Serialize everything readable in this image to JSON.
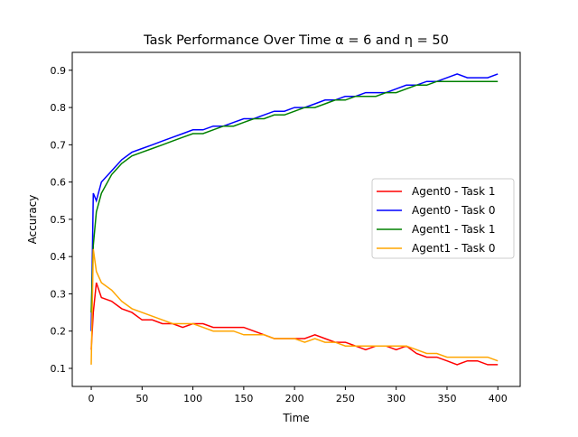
{
  "chart_data": {
    "type": "line",
    "title": "Task Performance Over Time α = 6 and η = 50",
    "xlabel": "Time",
    "ylabel": "Accuracy",
    "xlim": [
      -18.7,
      422
    ],
    "ylim": [
      0.0515,
      0.948
    ],
    "xticks": [
      0,
      50,
      100,
      150,
      200,
      250,
      300,
      350,
      400
    ],
    "yticks": [
      0.1,
      0.2,
      0.3,
      0.4,
      0.5,
      0.6,
      0.7,
      0.8,
      0.9
    ],
    "grid": false,
    "legend_position": "center-right",
    "x": [
      0,
      2,
      5,
      10,
      20,
      30,
      40,
      50,
      60,
      70,
      80,
      90,
      100,
      110,
      120,
      130,
      140,
      150,
      160,
      170,
      180,
      190,
      200,
      210,
      220,
      230,
      240,
      250,
      260,
      270,
      280,
      290,
      300,
      310,
      320,
      330,
      340,
      350,
      360,
      370,
      380,
      390,
      400
    ],
    "series": [
      {
        "name": "Agent0 - Task 1",
        "color": "#ff0000",
        "values": [
          0.15,
          0.25,
          0.33,
          0.29,
          0.28,
          0.26,
          0.25,
          0.23,
          0.23,
          0.22,
          0.22,
          0.21,
          0.22,
          0.22,
          0.21,
          0.21,
          0.21,
          0.21,
          0.2,
          0.19,
          0.18,
          0.18,
          0.18,
          0.18,
          0.19,
          0.18,
          0.17,
          0.17,
          0.16,
          0.15,
          0.16,
          0.16,
          0.15,
          0.16,
          0.14,
          0.13,
          0.13,
          0.12,
          0.11,
          0.12,
          0.12,
          0.11,
          0.11
        ]
      },
      {
        "name": "Agent0 - Task 0",
        "color": "#0000ff",
        "values": [
          0.2,
          0.57,
          0.55,
          0.6,
          0.63,
          0.66,
          0.68,
          0.69,
          0.7,
          0.71,
          0.72,
          0.73,
          0.74,
          0.74,
          0.75,
          0.75,
          0.76,
          0.77,
          0.77,
          0.78,
          0.79,
          0.79,
          0.8,
          0.8,
          0.81,
          0.82,
          0.82,
          0.83,
          0.83,
          0.84,
          0.84,
          0.84,
          0.85,
          0.86,
          0.86,
          0.87,
          0.87,
          0.88,
          0.89,
          0.88,
          0.88,
          0.88,
          0.89
        ]
      },
      {
        "name": "Agent1 - Task 1",
        "color": "#008000",
        "values": [
          0.25,
          0.43,
          0.52,
          0.57,
          0.62,
          0.65,
          0.67,
          0.68,
          0.69,
          0.7,
          0.71,
          0.72,
          0.73,
          0.73,
          0.74,
          0.75,
          0.75,
          0.76,
          0.77,
          0.77,
          0.78,
          0.78,
          0.79,
          0.8,
          0.8,
          0.81,
          0.82,
          0.82,
          0.83,
          0.83,
          0.83,
          0.84,
          0.84,
          0.85,
          0.86,
          0.86,
          0.87,
          0.87,
          0.87,
          0.87,
          0.87,
          0.87,
          0.87
        ]
      },
      {
        "name": "Agent1 - Task 0",
        "color": "#ffa500",
        "values": [
          0.11,
          0.42,
          0.36,
          0.33,
          0.31,
          0.28,
          0.26,
          0.25,
          0.24,
          0.23,
          0.22,
          0.22,
          0.22,
          0.21,
          0.2,
          0.2,
          0.2,
          0.19,
          0.19,
          0.19,
          0.18,
          0.18,
          0.18,
          0.17,
          0.18,
          0.17,
          0.17,
          0.16,
          0.16,
          0.16,
          0.16,
          0.16,
          0.16,
          0.16,
          0.15,
          0.14,
          0.14,
          0.13,
          0.13,
          0.13,
          0.13,
          0.13,
          0.12
        ]
      }
    ]
  }
}
